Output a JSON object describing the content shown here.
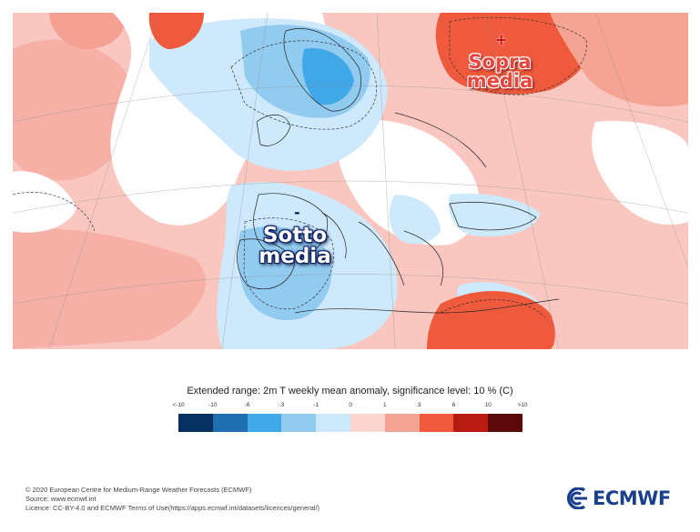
{
  "map": {
    "labels": {
      "above_sign": "+",
      "above": "Sopra media",
      "below_sign": "-",
      "below": "Sotto media"
    }
  },
  "legend": {
    "title": "Extended range: 2m T weekly mean anomaly, significance level: 10 % (C)",
    "ticks": [
      "<-10",
      "-10",
      "-6",
      "-3",
      "-1",
      "0",
      "1",
      "3",
      "6",
      "10",
      ">10"
    ],
    "colors": [
      "#053061",
      "#1f6fb0",
      "#41a8e8",
      "#92cbf0",
      "#cde9fb",
      "#fdd5cf",
      "#f5a393",
      "#ef5a3c",
      "#b81b10",
      "#5b0a09"
    ]
  },
  "footer": {
    "line1": "© 2020 European Centre for Medium-Range Weather Forecasts (ECMWF)",
    "line2": "Source: www.ecmwf.int",
    "line3": "Licence: CC-BY-4.0 and ECMWF Terms of Use(https://apps.ecmwf.int/datasets/licences/general/)"
  },
  "logo": {
    "text": "ECMWF",
    "color": "#1b3f8f"
  }
}
